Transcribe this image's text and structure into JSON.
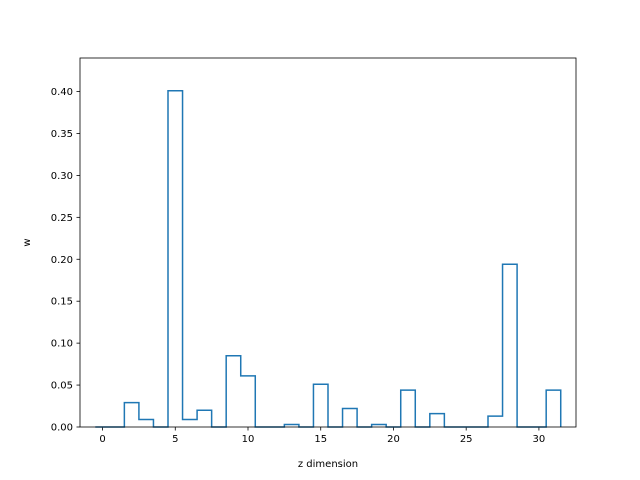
{
  "chart_data": {
    "type": "bar",
    "style": "step-histogram",
    "title": "",
    "xlabel": "z dimension",
    "ylabel": "w",
    "xlim": [
      -1.55,
      32.55
    ],
    "ylim": [
      0,
      0.44
    ],
    "xticks": [
      0,
      5,
      10,
      15,
      20,
      25,
      30
    ],
    "yticks": [
      0.0,
      0.05,
      0.1,
      0.15,
      0.2,
      0.25,
      0.3,
      0.35,
      0.4
    ],
    "grid": false,
    "legend": "none",
    "color": "#1f77b4",
    "bin_width": 1,
    "categories": [
      0,
      1,
      2,
      3,
      4,
      5,
      6,
      7,
      8,
      9,
      10,
      11,
      12,
      13,
      14,
      15,
      16,
      17,
      18,
      19,
      20,
      21,
      22,
      23,
      24,
      25,
      26,
      27,
      28,
      29,
      30,
      31
    ],
    "values": [
      0.0,
      0.0,
      0.029,
      0.009,
      0.0,
      0.401,
      0.009,
      0.02,
      0.0,
      0.085,
      0.061,
      0.0,
      0.0,
      0.003,
      0.0,
      0.051,
      0.0,
      0.022,
      0.0,
      0.003,
      0.0,
      0.044,
      0.0,
      0.016,
      0.0,
      0.0,
      0.0,
      0.013,
      0.194,
      0.0,
      0.0,
      0.044
    ]
  }
}
